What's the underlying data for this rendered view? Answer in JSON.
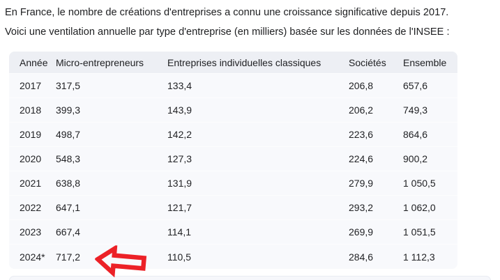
{
  "intro": {
    "line1": "En France, le nombre de créations d'entreprises a connu une croissance significative depuis 2017.",
    "line2": "Voici une ventilation annuelle par type d'entreprise (en milliers) basée sur les données de l'INSEE :"
  },
  "table": {
    "columns": [
      "Année",
      "Micro-entrepreneurs",
      "Entreprises individuelles classiques",
      "Sociétés",
      "Ensemble"
    ],
    "rows": [
      [
        "2017",
        "317,5",
        "133,4",
        "206,8",
        "657,6"
      ],
      [
        "2018",
        "399,3",
        "143,9",
        "206,2",
        "749,3"
      ],
      [
        "2019",
        "498,7",
        "142,2",
        "223,6",
        "864,6"
      ],
      [
        "2020",
        "548,3",
        "127,3",
        "224,6",
        "900,2"
      ],
      [
        "2021",
        "638,8",
        "131,9",
        "279,9",
        "1 050,5"
      ],
      [
        "2022",
        "647,1",
        "121,7",
        "293,2",
        "1 062,0"
      ],
      [
        "2023",
        "667,4",
        "114,1",
        "269,9",
        "1 051,5"
      ],
      [
        "2024*",
        "717,2",
        "110,5",
        "284,6",
        "1 112,3"
      ]
    ]
  },
  "annotation": {
    "type": "left-block-arrow",
    "target_row": "2024*",
    "target_value": "717,2",
    "color": "#ec2127"
  },
  "colors": {
    "header_bg": "#edeff4",
    "body_bg": "#f8f9fc",
    "text": "#1f2023",
    "arrow_red": "#ec2127"
  }
}
